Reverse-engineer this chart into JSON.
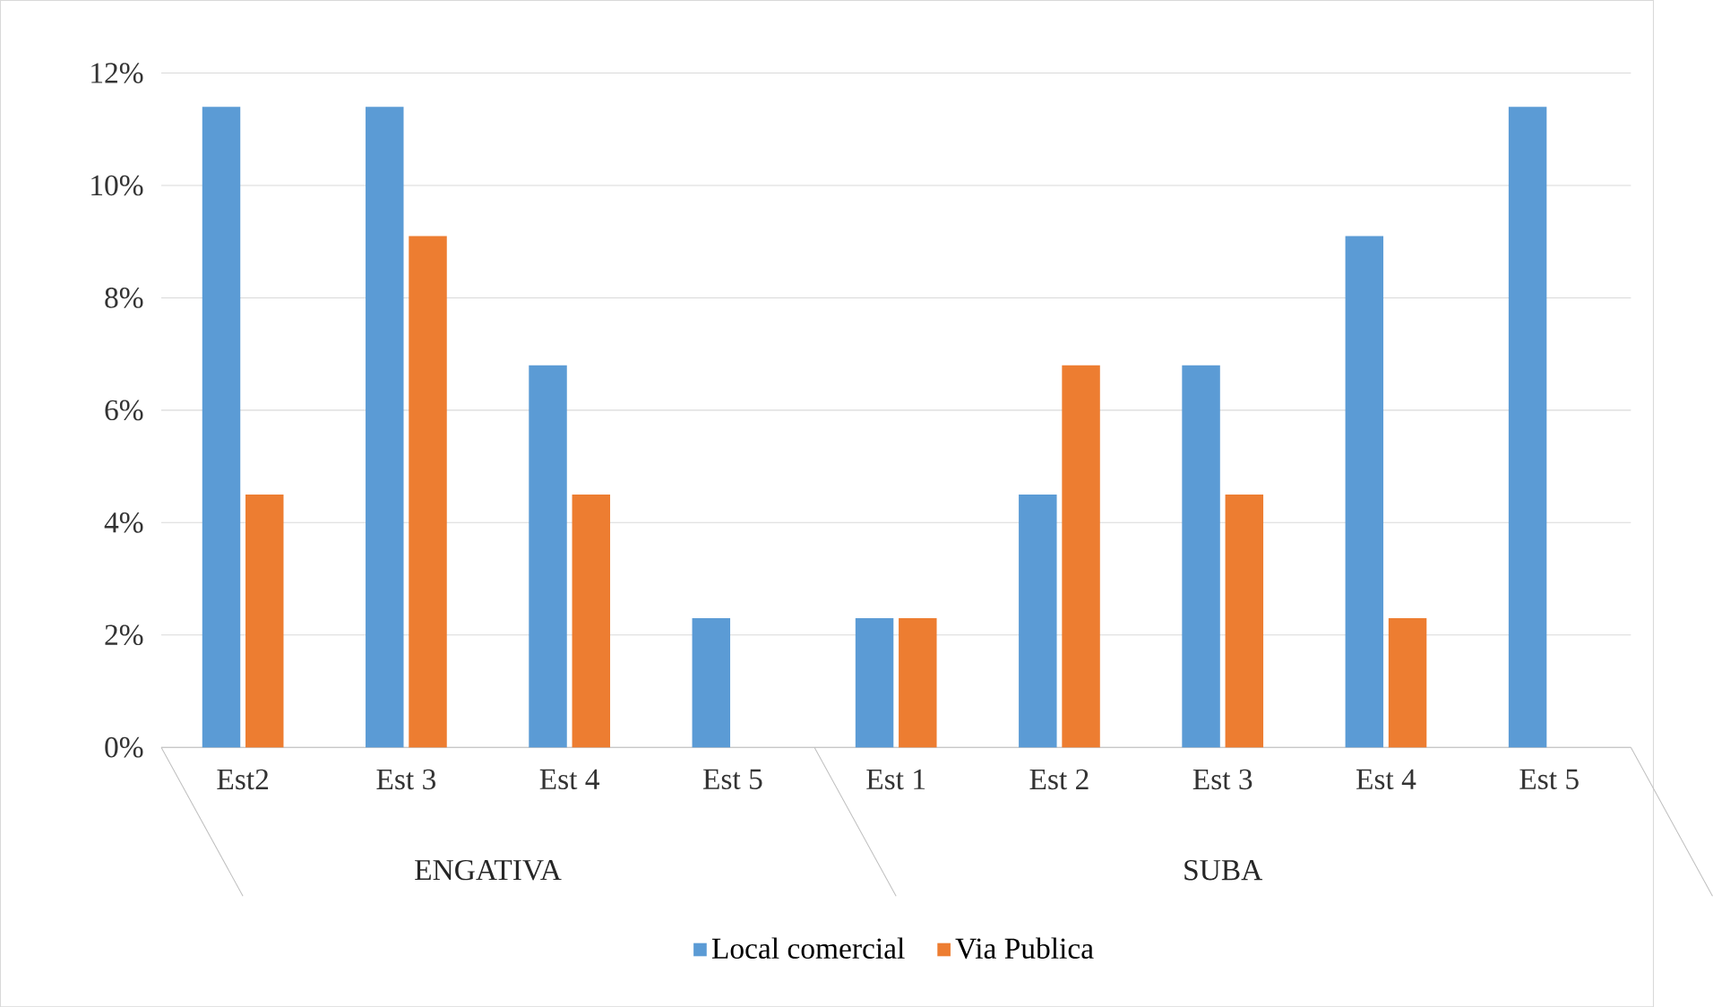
{
  "chart_data": {
    "type": "bar",
    "categories": [
      "Est2",
      "Est 3",
      "Est 4",
      "Est 5",
      "Est 1",
      "Est 2",
      "Est 3",
      "Est 4",
      "Est 5"
    ],
    "series": [
      {
        "name": "Local comercial",
        "color": "#5b9bd5",
        "values": [
          11.4,
          11.4,
          6.8,
          2.3,
          2.3,
          4.5,
          6.8,
          9.1,
          11.4
        ]
      },
      {
        "name": "Via Publica",
        "color": "#ed7d31",
        "values": [
          4.5,
          9.1,
          4.5,
          null,
          2.3,
          6.8,
          4.5,
          2.3,
          null
        ]
      }
    ],
    "ylim": [
      0,
      12
    ],
    "yticks": [
      {
        "value": 0,
        "label": "0%"
      },
      {
        "value": 2,
        "label": "2%"
      },
      {
        "value": 4,
        "label": "4%"
      },
      {
        "value": 6,
        "label": "6%"
      },
      {
        "value": 8,
        "label": "8%"
      },
      {
        "value": 10,
        "label": "10%"
      },
      {
        "value": 12,
        "label": "12%"
      }
    ],
    "annotations": [
      "ENGATIVA",
      "SUBA"
    ],
    "grid": "y",
    "legend": "bottom"
  }
}
